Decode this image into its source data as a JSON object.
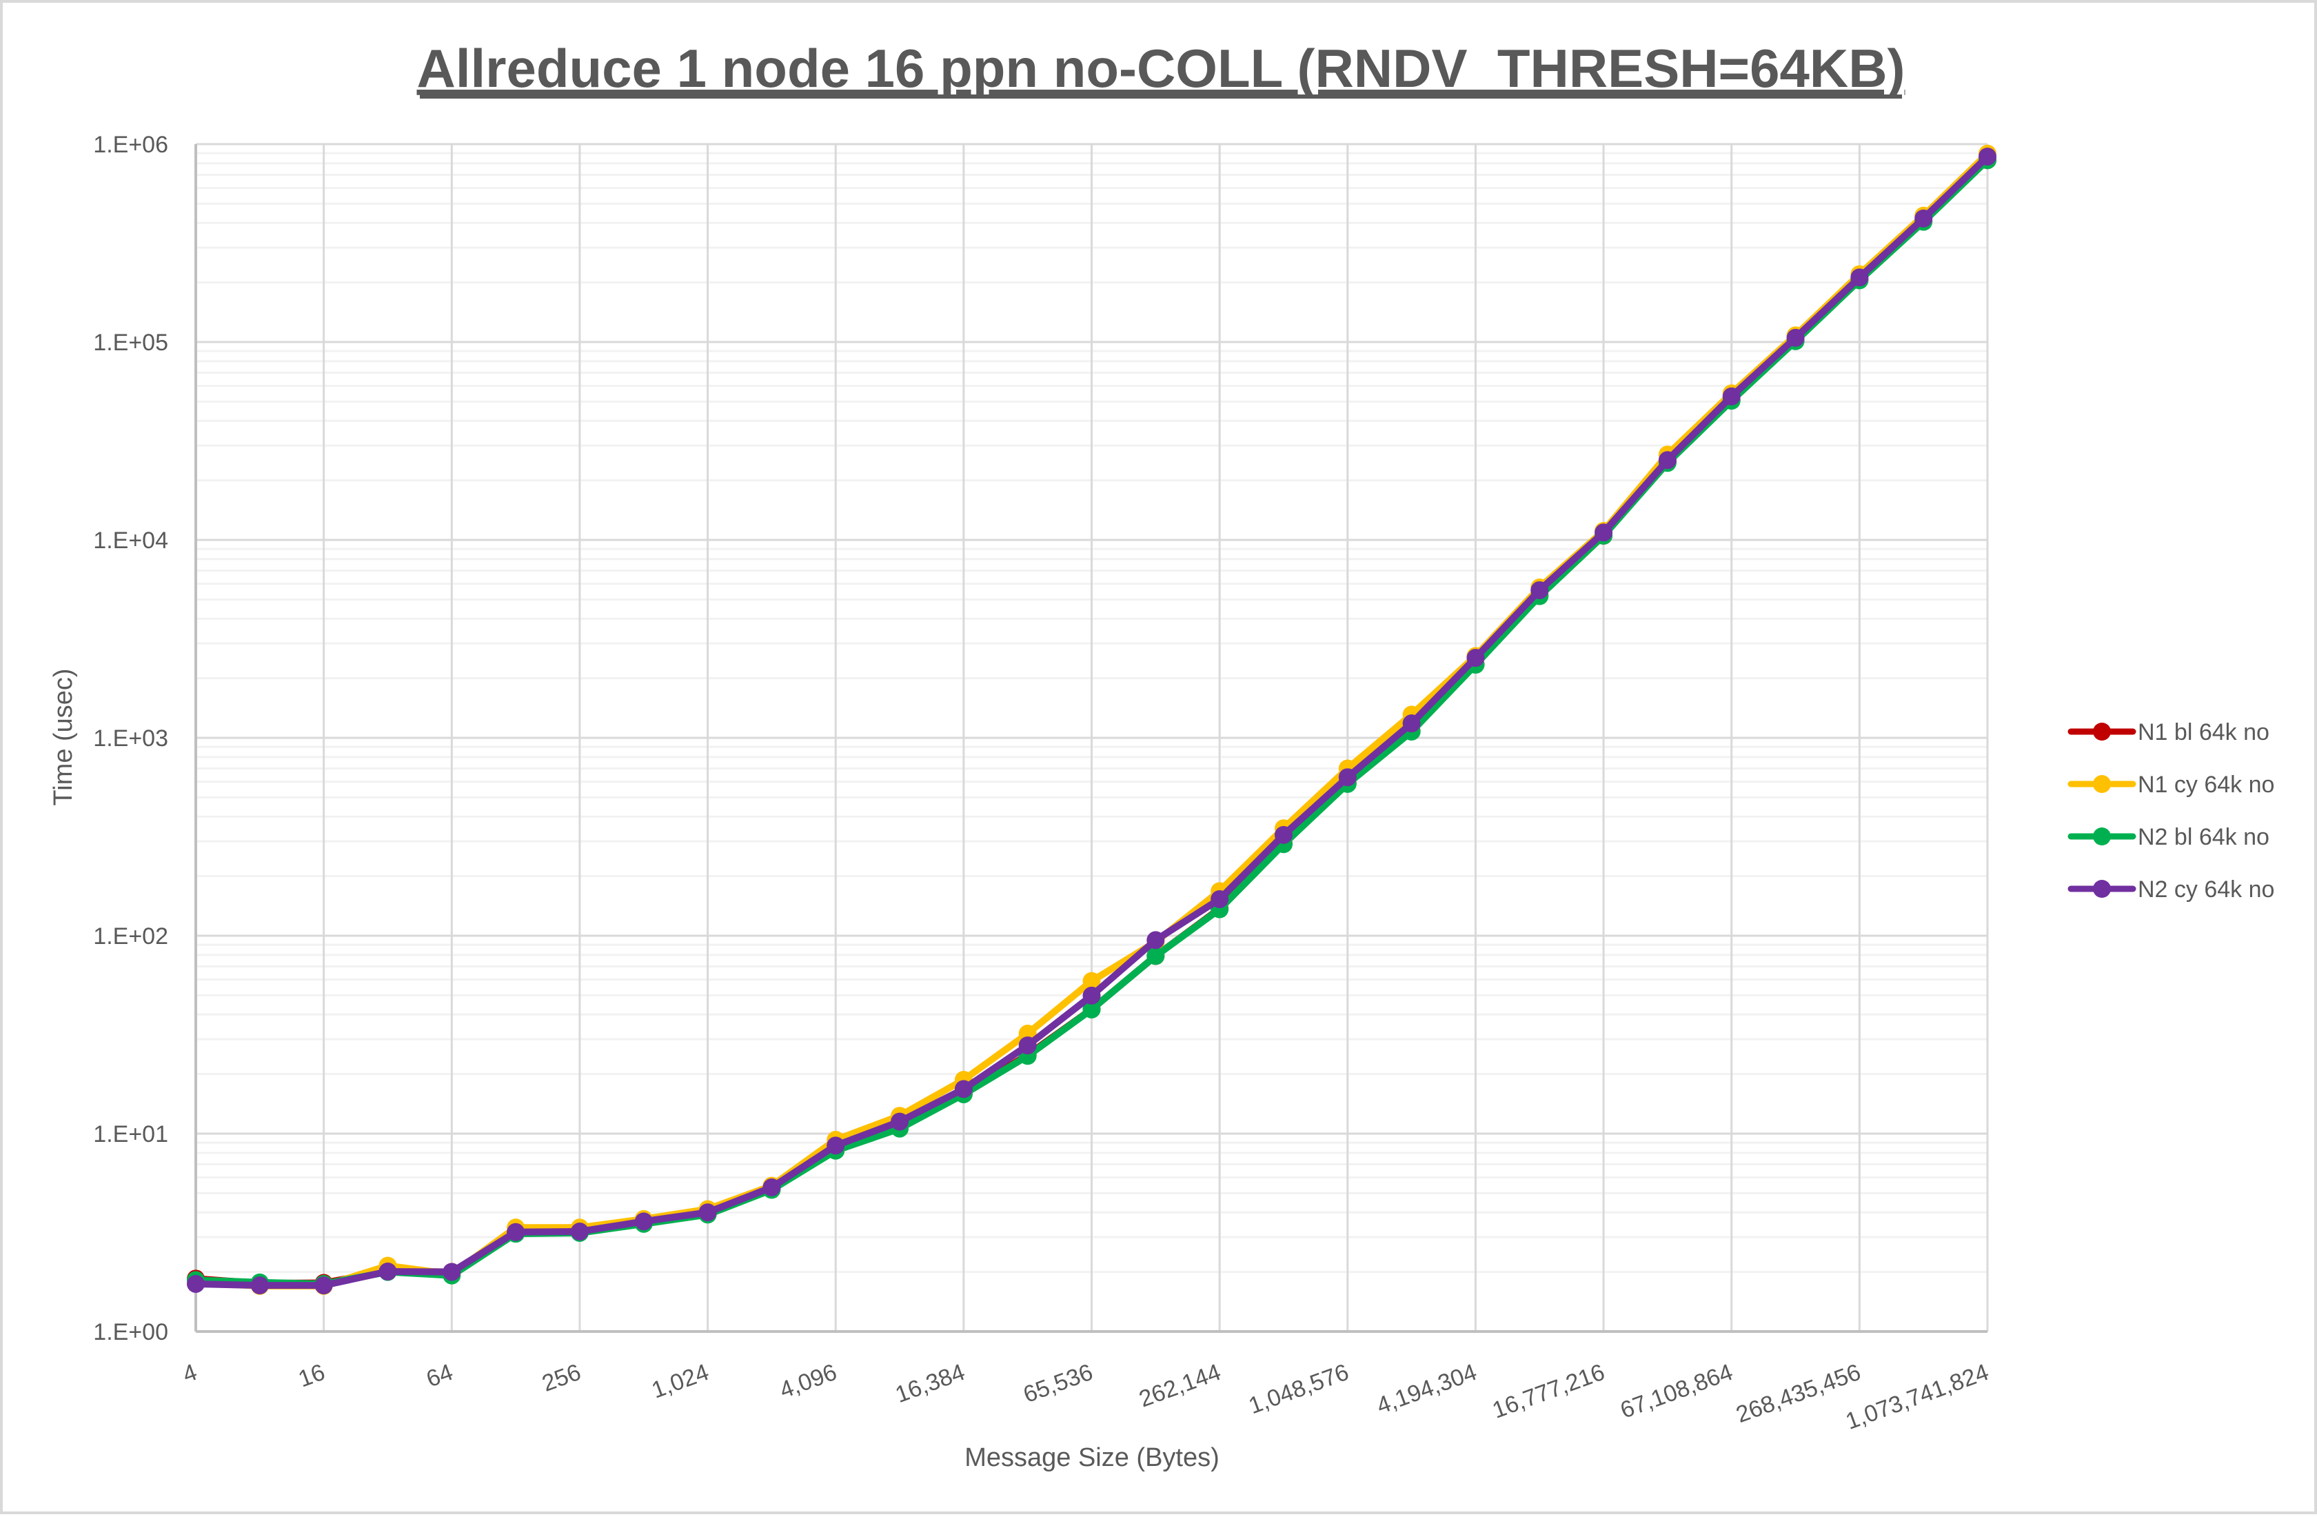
{
  "chart_data": {
    "type": "line",
    "title": "Allreduce 1 node 16 ppn no-COLL (RNDV_THRESH=64KB)",
    "xlabel": "Message Size (Bytes)",
    "ylabel": "Time (usec)",
    "yscale": "log",
    "ylim": [
      1,
      1000000
    ],
    "grid": {
      "major": true,
      "minor_horizontal": true
    },
    "legend_position": "right",
    "y_tick_labels": [
      "1.E+00",
      "1.E+01",
      "1.E+02",
      "1.E+03",
      "1.E+04",
      "1.E+05",
      "1.E+06"
    ],
    "x_tick_labels": [
      "4",
      "16",
      "64",
      "256",
      "1,024",
      "4,096",
      "16,384",
      "65,536",
      "262,144",
      "1,048,576",
      "4,194,304",
      "16,777,216",
      "67,108,864",
      "268,435,456",
      "1,073,741,824"
    ],
    "x": [
      4,
      8,
      16,
      32,
      64,
      128,
      256,
      512,
      1024,
      2048,
      4096,
      8192,
      16384,
      32768,
      65536,
      131072,
      262144,
      524288,
      1048576,
      2097152,
      4194304,
      8388608,
      16777216,
      33554432,
      67108864,
      134217728,
      268435456,
      536870912,
      1073741824
    ],
    "series": [
      {
        "name": "N1 bl 64k no",
        "color": "#C00000",
        "values": [
          1.85,
          1.75,
          1.76,
          2.02,
          2.0,
          3.15,
          3.18,
          3.55,
          3.95,
          5.3,
          8.3,
          10.8,
          15.9,
          25.0,
          42.5,
          79,
          137,
          292,
          590,
          1080,
          2350,
          5250,
          10500,
          24800,
          51000,
          102000,
          207000,
          410000,
          830000
        ]
      },
      {
        "name": "N1 cy 64k no",
        "color": "#FFC000",
        "values": [
          1.76,
          1.7,
          1.7,
          2.15,
          1.95,
          3.35,
          3.35,
          3.7,
          4.15,
          5.45,
          9.3,
          12.3,
          18.7,
          32.0,
          59.0,
          93,
          168,
          349,
          700,
          1310,
          2590,
          5750,
          11100,
          27000,
          55000,
          108000,
          220000,
          435000,
          895000
        ]
      },
      {
        "name": "N2 bl 64k no",
        "color": "#00B050",
        "values": [
          1.82,
          1.77,
          1.74,
          2.0,
          1.92,
          3.12,
          3.15,
          3.5,
          3.9,
          5.2,
          8.2,
          10.6,
          15.8,
          24.7,
          42.4,
          79,
          136,
          290,
          585,
          1075,
          2340,
          5200,
          10500,
          24500,
          50500,
          101000,
          205000,
          405000,
          830000
        ]
      },
      {
        "name": "N2 cy 64k no",
        "color": "#7030A0",
        "values": [
          1.74,
          1.71,
          1.71,
          2.01,
          2.0,
          3.18,
          3.2,
          3.6,
          4.0,
          5.35,
          8.7,
          11.5,
          16.8,
          27.9,
          49.8,
          95,
          153,
          323,
          632,
          1183,
          2535,
          5570,
          10900,
          25300,
          53100,
          105000,
          212000,
          421000,
          865000
        ]
      }
    ]
  }
}
